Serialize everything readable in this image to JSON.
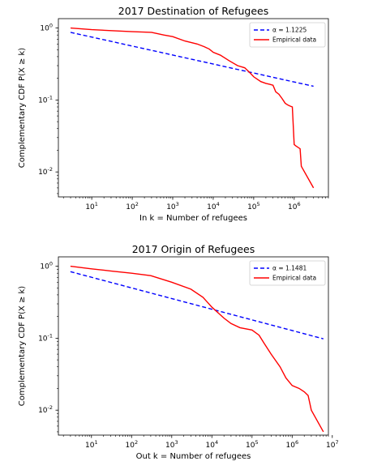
{
  "chart_data": [
    {
      "type": "line",
      "title": "2017 Destination of Refugees",
      "xlabel": "In k = Number of refugees",
      "ylabel": "Complementary CDF P(X ≥ k)",
      "xscale": "log",
      "yscale": "log",
      "xlim": [
        1.5,
        7000000
      ],
      "ylim": [
        0.0045,
        1.35
      ],
      "xticks": [
        {
          "value": 10,
          "label": "10^1"
        },
        {
          "value": 100,
          "label": "10^2"
        },
        {
          "value": 1000,
          "label": "10^3"
        },
        {
          "value": 10000,
          "label": "10^4"
        },
        {
          "value": 100000,
          "label": "10^5"
        },
        {
          "value": 1000000,
          "label": "10^6"
        }
      ],
      "yticks": [
        {
          "value": 0.01,
          "label": "10^-2"
        },
        {
          "value": 0.1,
          "label": "10^-1"
        },
        {
          "value": 1,
          "label": "10^0"
        }
      ],
      "legend_position": "top-right",
      "series": [
        {
          "name": "α = 1.1225",
          "style": "dashed",
          "color": "#0000ff",
          "x": [
            3,
            3000000
          ],
          "y": [
            0.87,
            0.155
          ]
        },
        {
          "name": "Empirical data",
          "style": "solid",
          "color": "#ff0000",
          "x": [
            3,
            10,
            30,
            100,
            300,
            600,
            1000,
            2000,
            4000,
            6000,
            8000,
            10000,
            15000,
            25000,
            40000,
            60000,
            80000,
            100000,
            150000,
            200000,
            250000,
            300000,
            350000,
            420000,
            500000,
            600000,
            700000,
            800000,
            900000,
            1000000,
            1100000,
            1400000,
            1500000,
            3000000
          ],
          "y": [
            1.0,
            0.95,
            0.92,
            0.89,
            0.87,
            0.8,
            0.76,
            0.66,
            0.6,
            0.55,
            0.51,
            0.46,
            0.42,
            0.35,
            0.3,
            0.28,
            0.24,
            0.21,
            0.18,
            0.17,
            0.165,
            0.16,
            0.13,
            0.12,
            0.105,
            0.09,
            0.085,
            0.082,
            0.08,
            0.024,
            0.023,
            0.021,
            0.012,
            0.006
          ]
        }
      ]
    },
    {
      "type": "line",
      "title": "2017 Origin of Refugees",
      "xlabel": "Out k = Number of refugees",
      "ylabel": "Complementary CDF P(X ≥ k)",
      "xscale": "log",
      "yscale": "log",
      "xlim": [
        1.5,
        8000000
      ],
      "ylim": [
        0.0045,
        1.35
      ],
      "xticks": [
        {
          "value": 10,
          "label": "10^1"
        },
        {
          "value": 100,
          "label": "10^2"
        },
        {
          "value": 1000,
          "label": "10^3"
        },
        {
          "value": 10000,
          "label": "10^4"
        },
        {
          "value": 100000,
          "label": "10^5"
        },
        {
          "value": 1000000,
          "label": "10^6"
        },
        {
          "value": 10000000,
          "label": "10^7"
        }
      ],
      "yticks": [
        {
          "value": 0.01,
          "label": "10^-2"
        },
        {
          "value": 0.1,
          "label": "10^-1"
        },
        {
          "value": 1,
          "label": "10^0"
        }
      ],
      "legend_position": "top-right",
      "series": [
        {
          "name": "α = 1.1481",
          "style": "dashed",
          "color": "#0000ff",
          "x": [
            3,
            6000000
          ],
          "y": [
            0.84,
            0.098
          ]
        },
        {
          "name": "Empirical data",
          "style": "solid",
          "color": "#ff0000",
          "x": [
            3,
            10,
            30,
            100,
            300,
            1000,
            3000,
            6000,
            10000,
            15000,
            20000,
            30000,
            50000,
            100000,
            150000,
            200000,
            300000,
            500000,
            700000,
            1000000,
            1500000,
            2000000,
            2500000,
            3000000,
            6000000
          ],
          "y": [
            1.0,
            0.92,
            0.86,
            0.8,
            0.74,
            0.6,
            0.48,
            0.37,
            0.27,
            0.22,
            0.19,
            0.16,
            0.14,
            0.13,
            0.11,
            0.085,
            0.06,
            0.04,
            0.028,
            0.022,
            0.02,
            0.018,
            0.016,
            0.01,
            0.005
          ]
        }
      ]
    }
  ]
}
